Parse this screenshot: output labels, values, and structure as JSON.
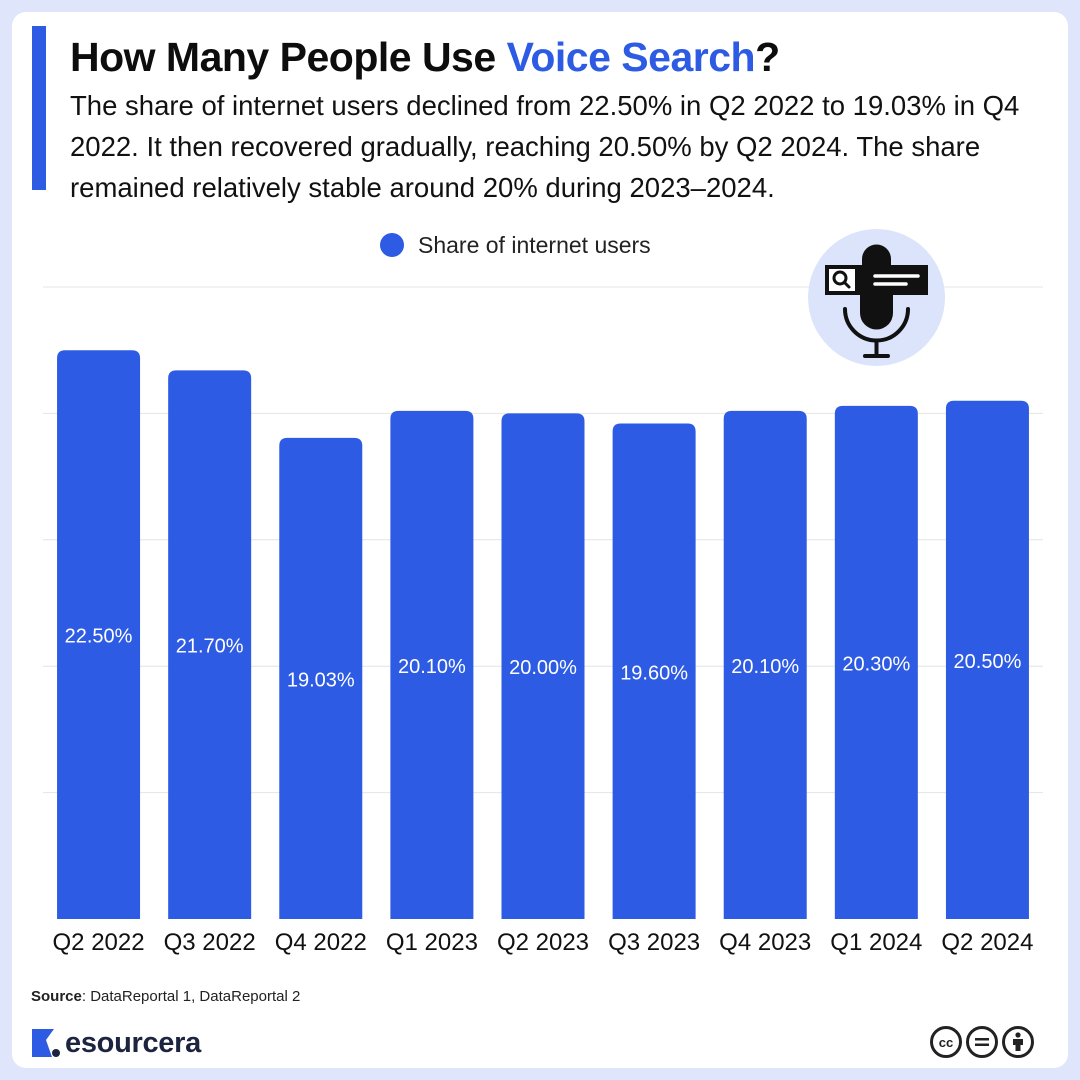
{
  "header": {
    "title_prefix": "How Many People Use ",
    "title_highlight": "Voice Search",
    "title_suffix": "?",
    "subtitle": "The share of internet users declined from 22.50% in Q2 2022 to 19.03% in Q4 2022. It then recovered gradually, reaching 20.50% by Q2 2024. The share remained relatively stable around 20% during 2023–2024."
  },
  "colors": {
    "accent": "#2d5be3",
    "bar": "#2d5be3",
    "background": "#dfe6fb",
    "card": "#ffffff",
    "grid": "#e4e4e4"
  },
  "decoration": {
    "badge_icon": "voice-search-microphone-icon"
  },
  "chart_data": {
    "type": "bar",
    "categories": [
      "Q2 2022",
      "Q3 2022",
      "Q4 2022",
      "Q1 2023",
      "Q2 2023",
      "Q3 2023",
      "Q4 2023",
      "Q1 2024",
      "Q2 2024"
    ],
    "series": [
      {
        "name": "Share of internet users",
        "values": [
          22.5,
          21.7,
          19.03,
          20.1,
          20.0,
          19.6,
          20.1,
          20.3,
          20.5
        ],
        "labels": [
          "22.50%",
          "21.70%",
          "19.03%",
          "20.10%",
          "20.00%",
          "19.60%",
          "20.10%",
          "20.30%",
          "20.50%"
        ]
      }
    ],
    "ylim": [
      0,
      25
    ],
    "y_gridlines": [
      5,
      10,
      15,
      20,
      25
    ],
    "grid": true,
    "y_axis_labels_shown": false,
    "legend": "top-center",
    "data_labels": "inside-middle"
  },
  "footer": {
    "source_label": "Source",
    "source_text": ": DataReportal 1, DataReportal 2",
    "brand_name": "esourcera",
    "license_icons": [
      "cc-icon",
      "no-derivatives-icon",
      "attribution-icon"
    ]
  }
}
